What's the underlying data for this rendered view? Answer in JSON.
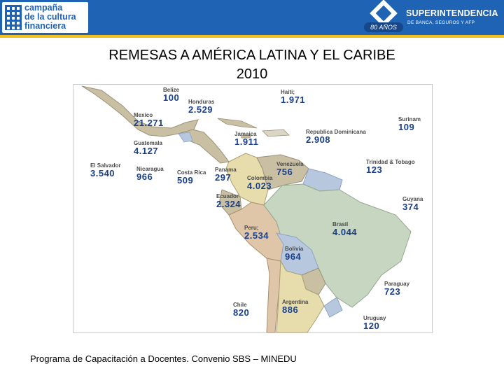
{
  "header": {
    "left_logo_text": "campaña\nde la cultura\nfinanciera",
    "right_logo_name": "SUPERINTENDENCIA",
    "right_logo_sub": "DE BANCA, SEGUROS Y AFP",
    "right_logo_badge": "80 AÑOS",
    "colors": {
      "bar": "#1f63b4",
      "rule": "#f3c21a"
    }
  },
  "title": {
    "line1": "REMESAS A AMÉRICA LATINA Y EL CARIBE",
    "line2": "2010"
  },
  "map": {
    "countries": [
      {
        "name": "Belize",
        "value": "100"
      },
      {
        "name": "Honduras",
        "value": "2.529"
      },
      {
        "name": "Haiti;",
        "value": "1.971"
      },
      {
        "name": "Surinam",
        "value": "109"
      },
      {
        "name": "Mexico",
        "value": "21.271"
      },
      {
        "name": "Jamaica",
        "value": "1.911"
      },
      {
        "name": "Republica Dominicana",
        "value": "2.908"
      },
      {
        "name": "Guatemala",
        "value": "4.127"
      },
      {
        "name": "Trinidad & Tobago",
        "value": "123"
      },
      {
        "name": "El Salvador",
        "value": "3.540"
      },
      {
        "name": "Nicaragua",
        "value": "966"
      },
      {
        "name": "Costa Rica",
        "value": "509"
      },
      {
        "name": "Panama",
        "value": "297"
      },
      {
        "name": "Venezuela",
        "value": "756"
      },
      {
        "name": "Colombia",
        "value": "4.023"
      },
      {
        "name": "Guyana",
        "value": "374"
      },
      {
        "name": "Ecuador",
        "value": "2.324"
      },
      {
        "name": "Brasil",
        "value": "4.044"
      },
      {
        "name": "Peru;",
        "value": "2.534"
      },
      {
        "name": "Bolivia",
        "value": "964"
      },
      {
        "name": "Paraguay",
        "value": "723"
      },
      {
        "name": "Chile",
        "value": "820"
      },
      {
        "name": "Argentina",
        "value": "886"
      },
      {
        "name": "Uruguay",
        "value": "120"
      }
    ]
  },
  "footer": {
    "text": "Programa de Capacitación a Docentes. Convenio SBS – MINEDU"
  }
}
